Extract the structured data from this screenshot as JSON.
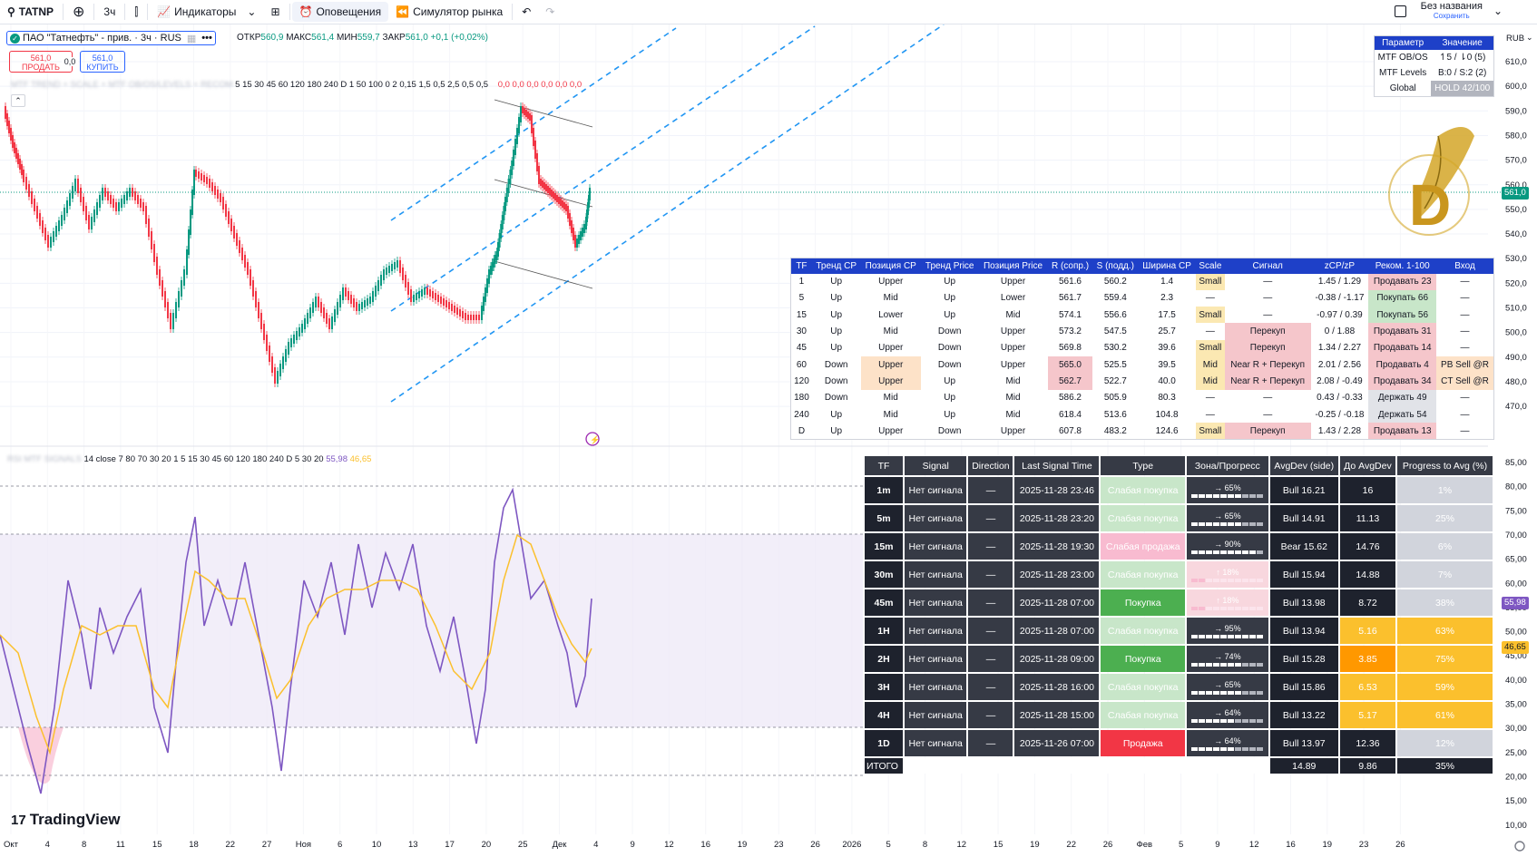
{
  "toolbar": {
    "symbol": "TATNP",
    "interval": "3ч",
    "indicators": "Индикаторы",
    "alerts": "Оповещения",
    "replay": "Симулятор рынка",
    "layout_title": "Без названия",
    "layout_status": "Сохранить"
  },
  "legend": {
    "name": "ПАО \"Татнефть\" - прив. · 3ч · RUS",
    "o_label": "ОТКР",
    "o": "560,9",
    "h_label": "МАКС",
    "h": "561,4",
    "l_label": "МИН",
    "l": "559,7",
    "c_label": "ЗАКР",
    "c": "561,0",
    "change": "+0,1 (+0,02%)",
    "sell_price": "561,0",
    "sell_label": "ПРОДАТЬ",
    "spread": "0,0",
    "buy_price": "561,0",
    "buy_label": "КУПИТЬ",
    "ind1_params": "5 15 30 45 60 120 180 240 D 1 50 100 0 2 0,15 1,5 0,5 2,5 0,5 0,5",
    "ind1_values": "0,0  0,0  0,0  0,0  0,0  0,0",
    "ind2_params": "14 close 7 80 70 30 20 1 5 15 30 45 60 120 180 240 D 5 30 20",
    "ind2_v1": "55,98",
    "ind2_v2": "46,65"
  },
  "mtf_box": {
    "headers": [
      "Параметр",
      "Значение"
    ],
    "rows": [
      [
        "MTF OB/OS",
        "↿5 / ⇂0 (5)"
      ],
      [
        "MTF Levels",
        "B:0 / S:2 (2)"
      ],
      [
        "Global",
        "HOLD 42/100"
      ]
    ]
  },
  "table1": {
    "headers": [
      "TF",
      "Тренд CP",
      "Позиция CP",
      "Тренд Price",
      "Позиция Price",
      "R (сопр.)",
      "S (подд.)",
      "Ширина CP",
      "Scale",
      "Сигнал",
      "zCP/zP",
      "Реком. 1-100",
      "Вход"
    ],
    "rows": [
      [
        "1",
        "Up",
        "Upper",
        "Up",
        "Upper",
        "561.6",
        "560.2",
        "1.4",
        "Small",
        "—",
        "1.45 / 1.29",
        "Продавать 23",
        "—"
      ],
      [
        "5",
        "Up",
        "Mid",
        "Up",
        "Lower",
        "561.7",
        "559.4",
        "2.3",
        "—",
        "—",
        "-0.38 / -1.17",
        "Покупать 66",
        "—"
      ],
      [
        "15",
        "Up",
        "Lower",
        "Up",
        "Mid",
        "574.1",
        "556.6",
        "17.5",
        "Small",
        "—",
        "-0.97 / 0.39",
        "Покупать 56",
        "—"
      ],
      [
        "30",
        "Up",
        "Mid",
        "Down",
        "Upper",
        "573.2",
        "547.5",
        "25.7",
        "—",
        "Перекуп",
        "0 / 1.88",
        "Продавать 31",
        "—"
      ],
      [
        "45",
        "Up",
        "Upper",
        "Down",
        "Upper",
        "569.8",
        "530.2",
        "39.6",
        "Small",
        "Перекуп",
        "1.34 / 2.27",
        "Продавать 14",
        "—"
      ],
      [
        "60",
        "Down",
        "Upper",
        "Down",
        "Upper",
        "565.0",
        "525.5",
        "39.5",
        "Mid",
        "Near R + Перекуп",
        "2.01 / 2.56",
        "Продавать 4",
        "PB Sell @R"
      ],
      [
        "120",
        "Down",
        "Upper",
        "Up",
        "Mid",
        "562.7",
        "522.7",
        "40.0",
        "Mid",
        "Near R + Перекуп",
        "2.08 / -0.49",
        "Продавать 34",
        "CT Sell @R"
      ],
      [
        "180",
        "Down",
        "Mid",
        "Up",
        "Mid",
        "586.2",
        "505.9",
        "80.3",
        "—",
        "—",
        "0.43 / -0.33",
        "Держать 49",
        "—"
      ],
      [
        "240",
        "Up",
        "Mid",
        "Up",
        "Mid",
        "618.4",
        "513.6",
        "104.8",
        "—",
        "—",
        "-0.25 / -0.18",
        "Держать 54",
        "—"
      ],
      [
        "D",
        "Up",
        "Upper",
        "Down",
        "Upper",
        "607.8",
        "483.2",
        "124.6",
        "Small",
        "Перекуп",
        "1.43 / 2.28",
        "Продавать 13",
        "—"
      ]
    ]
  },
  "table2": {
    "headers": [
      "TF",
      "Signal",
      "Direction",
      "Last Signal Time",
      "Type",
      "Зона/Прогресс",
      "AvgDev (side)",
      "До AvgDev",
      "Progress to Avg (%)"
    ],
    "rows": [
      {
        "tf": "1m",
        "signal": "Нет сигнала",
        "dir": "—",
        "time": "2025-11-28 23:46",
        "type": "Слабая покупка",
        "zone": "→ 65%",
        "prog": 0.65,
        "avg": "Bull 16.21",
        "to": "16",
        "pct": "1%"
      },
      {
        "tf": "5m",
        "signal": "Нет сигнала",
        "dir": "—",
        "time": "2025-11-28 23:20",
        "type": "Слабая покупка",
        "zone": "→ 65%",
        "prog": 0.65,
        "avg": "Bull 14.91",
        "to": "11.13",
        "pct": "25%"
      },
      {
        "tf": "15m",
        "signal": "Нет сигнала",
        "dir": "—",
        "time": "2025-11-28 19:30",
        "type": "Слабая продажа",
        "zone": "→ 90%",
        "prog": 0.9,
        "avg": "Bear 15.62",
        "to": "14.76",
        "pct": "6%"
      },
      {
        "tf": "30m",
        "signal": "Нет сигнала",
        "dir": "—",
        "time": "2025-11-28 23:00",
        "type": "Слабая покупка",
        "zone": "↑ 18%",
        "prog": 0.18,
        "avg": "Bull 15.94",
        "to": "14.88",
        "pct": "7%"
      },
      {
        "tf": "45m",
        "signal": "Нет сигнала",
        "dir": "—",
        "time": "2025-11-28 07:00",
        "type": "Покупка",
        "zone": "↑ 18%",
        "prog": 0.18,
        "avg": "Bull 13.98",
        "to": "8.72",
        "pct": "38%"
      },
      {
        "tf": "1H",
        "signal": "Нет сигнала",
        "dir": "—",
        "time": "2025-11-28 07:00",
        "type": "Слабая покупка",
        "zone": "→ 95%",
        "prog": 0.95,
        "avg": "Bull 13.94",
        "to": "5.16",
        "pct": "63%"
      },
      {
        "tf": "2H",
        "signal": "Нет сигнала",
        "dir": "—",
        "time": "2025-11-28 09:00",
        "type": "Покупка",
        "zone": "→ 74%",
        "prog": 0.74,
        "avg": "Bull 15.28",
        "to": "3.85",
        "pct": "75%"
      },
      {
        "tf": "3H",
        "signal": "Нет сигнала",
        "dir": "—",
        "time": "2025-11-28 16:00",
        "type": "Слабая покупка",
        "zone": "→ 65%",
        "prog": 0.65,
        "avg": "Bull 15.86",
        "to": "6.53",
        "pct": "59%"
      },
      {
        "tf": "4H",
        "signal": "Нет сигнала",
        "dir": "—",
        "time": "2025-11-28 15:00",
        "type": "Слабая покупка",
        "zone": "→ 64%",
        "prog": 0.64,
        "avg": "Bull 13.22",
        "to": "5.17",
        "pct": "61%"
      },
      {
        "tf": "1D",
        "signal": "Нет сигнала",
        "dir": "—",
        "time": "2025-11-26 07:00",
        "type": "Продажа",
        "zone": "→ 64%",
        "prog": 0.64,
        "avg": "Bull 13.97",
        "to": "12.36",
        "pct": "12%"
      }
    ],
    "total": {
      "label": "ИТОГО",
      "avg": "14.89",
      "to": "9.86",
      "pct": "35%"
    }
  },
  "axes": {
    "currency": "RUB",
    "price_ticks": [
      "610,0",
      "600,0",
      "590,0",
      "580,0",
      "570,0",
      "560,0",
      "550,0",
      "540,0",
      "530,0",
      "520,0",
      "510,0",
      "500,0",
      "490,0",
      "480,0",
      "470,0"
    ],
    "price_tick_values": [
      610,
      600,
      590,
      580,
      570,
      560,
      550,
      540,
      530,
      520,
      510,
      500,
      490,
      480,
      470
    ],
    "last_price": "561,0",
    "osc_ticks": [
      "85,00",
      "80,00",
      "75,00",
      "70,00",
      "65,00",
      "60,00",
      "55,00",
      "50,00",
      "45,00",
      "40,00",
      "35,00",
      "30,00",
      "25,00",
      "20,00",
      "15,00",
      "10,00"
    ],
    "osc_tick_values": [
      85,
      80,
      75,
      70,
      65,
      60,
      55,
      50,
      45,
      40,
      35,
      30,
      25,
      20,
      15,
      10
    ],
    "osc_last1": "55,98",
    "osc_last2": "46,65",
    "time_labels": [
      "Окт",
      "4",
      "8",
      "11",
      "15",
      "18",
      "22",
      "27",
      "Ноя",
      "6",
      "10",
      "13",
      "17",
      "20",
      "25",
      "Дек",
      "4",
      "9",
      "12",
      "16",
      "19",
      "23",
      "26",
      "2026",
      "5",
      "8",
      "12",
      "15",
      "19",
      "22",
      "26",
      "Фев",
      "5",
      "9",
      "12",
      "16",
      "19",
      "23",
      "26"
    ]
  },
  "brand": "TradingView",
  "colors": {
    "up": "#089981",
    "down": "#f23645",
    "accent": "#2962ff",
    "rsi": "#7e57c2",
    "rsi_ma": "#fbc02d",
    "header_blue": "#1e40c8"
  }
}
